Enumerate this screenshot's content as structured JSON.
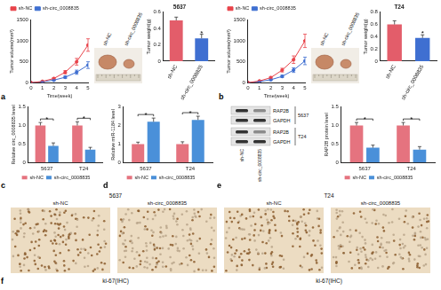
{
  "chart_data": [
    {
      "type": "line",
      "x": [
        0,
        1,
        2,
        3,
        4,
        5
      ],
      "xlim": [
        0,
        5
      ],
      "xticks": [
        0,
        1,
        2,
        3,
        4,
        5
      ],
      "x_label": "Time(week)",
      "y_label": "Tumor volume(mm³)",
      "ylim": [
        0,
        1500
      ],
      "yticks": [
        0,
        500,
        1000,
        1500
      ],
      "grid": false,
      "legend": "top-left",
      "series": [
        {
          "name": "sh-NC",
          "color": "#e8434a",
          "marker": "circle",
          "line_style": "solid",
          "values": [
            0,
            30,
            100,
            250,
            500,
            900
          ],
          "errors": [
            0,
            10,
            20,
            40,
            80,
            150
          ]
        },
        {
          "name": "sh-circ_0008835",
          "color": "#3f6fd1",
          "marker": "circle",
          "line_style": "solid",
          "values": [
            0,
            20,
            60,
            130,
            250,
            420
          ],
          "errors": [
            0,
            8,
            15,
            30,
            50,
            80
          ]
        }
      ]
    },
    {
      "type": "bar",
      "title": "5637",
      "categories": [
        "sh-NC",
        "sh-circ_0008835"
      ],
      "values": [
        0.5,
        0.28
      ],
      "errors": [
        0.04,
        0.05
      ],
      "colors": [
        "#e35d6a",
        "#3f6fd1"
      ],
      "y_label": "Tumor weight(g)",
      "ylim": [
        0,
        0.6
      ],
      "yticks": [
        0,
        0.2,
        0.4,
        0.6
      ],
      "grid": false,
      "annotations": [
        {
          "text": "*",
          "category": "sh-circ_0008835"
        }
      ]
    },
    {
      "type": "line",
      "x": [
        0,
        1,
        2,
        3,
        4,
        5
      ],
      "xlim": [
        0,
        5
      ],
      "xticks": [
        0,
        1,
        2,
        3,
        4,
        5
      ],
      "x_label": "Time(week)",
      "y_label": "Tumor volume(mm³)",
      "ylim": [
        0,
        1500
      ],
      "yticks": [
        0,
        500,
        1000,
        1500
      ],
      "grid": false,
      "legend": "top-left",
      "series": [
        {
          "name": "sh-NC",
          "color": "#e8434a",
          "marker": "circle",
          "line_style": "solid",
          "values": [
            0,
            40,
            120,
            300,
            550,
            1000
          ],
          "errors": [
            0,
            12,
            25,
            45,
            90,
            160
          ]
        },
        {
          "name": "sh-circ_0008835",
          "color": "#3f6fd1",
          "marker": "circle",
          "line_style": "solid",
          "values": [
            0,
            25,
            70,
            150,
            300,
            520
          ],
          "errors": [
            0,
            8,
            15,
            30,
            55,
            90
          ]
        }
      ]
    },
    {
      "type": "bar",
      "title": "T24",
      "categories": [
        "sh-NC",
        "sh-circ_0008835"
      ],
      "values": [
        0.6,
        0.38
      ],
      "errors": [
        0.06,
        0.05
      ],
      "colors": [
        "#e35d6a",
        "#3f6fd1"
      ],
      "y_label": "Tumor weight(g)",
      "ylim": [
        0,
        0.8
      ],
      "yticks": [
        0,
        0.2,
        0.4,
        0.6,
        0.8
      ],
      "grid": false,
      "annotations": [
        {
          "text": "*",
          "category": "sh-circ_0008835"
        }
      ]
    },
    {
      "type": "bar",
      "categories": [
        "5637",
        "T24"
      ],
      "y_label": "Relative circ_0008835 level",
      "ylim": [
        0,
        1.5
      ],
      "yticks": [
        0,
        0.5,
        {
          "value": 1,
          "label": "1.0"
        },
        1.5
      ],
      "grid": false,
      "legend": "bottom",
      "series": [
        {
          "name": "sh-NC",
          "color": "#e5737f",
          "values": [
            1,
            1
          ],
          "errors": [
            0.08,
            0.1
          ]
        },
        {
          "name": "sh-circ_0008835",
          "color": "#4a90d9",
          "values": [
            0.45,
            0.35
          ],
          "errors": [
            0.08,
            0.06
          ]
        }
      ],
      "annotations": [
        {
          "text": "*",
          "category": "5637"
        },
        {
          "text": "*",
          "category": "T24"
        }
      ]
    },
    {
      "type": "bar",
      "categories": [
        "5637",
        "T24"
      ],
      "y_label": "Relative miR-1184 level",
      "ylim": [
        0,
        3
      ],
      "yticks": [
        0,
        1,
        2,
        3
      ],
      "grid": false,
      "legend": "bottom",
      "series": [
        {
          "name": "sh-NC",
          "color": "#e5737f",
          "values": [
            1,
            1
          ],
          "errors": [
            0.1,
            0.12
          ]
        },
        {
          "name": "sh-circ_0008835",
          "color": "#4a90d9",
          "values": [
            2.2,
            2.3
          ],
          "errors": [
            0.2,
            0.2
          ]
        }
      ],
      "annotations": [
        {
          "text": "*",
          "category": "5637"
        },
        {
          "text": "*",
          "category": "T24"
        }
      ]
    },
    {
      "type": "bar",
      "categories": [
        "5637",
        "T24"
      ],
      "y_label": "RAP2B protein level",
      "ylim": [
        0,
        1.5
      ],
      "yticks": [
        0,
        0.5,
        {
          "value": 1,
          "label": "1.0"
        },
        1.5
      ],
      "grid": false,
      "legend": "bottom",
      "series": [
        {
          "name": "sh-NC",
          "color": "#e5737f",
          "values": [
            1,
            1
          ],
          "errors": [
            0.08,
            0.08
          ]
        },
        {
          "name": "sh-circ_0008835",
          "color": "#4a90d9",
          "values": [
            0.4,
            0.35
          ],
          "errors": [
            0.07,
            0.08
          ]
        }
      ],
      "annotations": [
        {
          "text": "*",
          "category": "5637"
        },
        {
          "text": "*",
          "category": "T24"
        }
      ]
    }
  ],
  "panel_letters": [
    "a",
    "b",
    "c",
    "d",
    "e",
    "f"
  ],
  "photos": [
    {
      "labels": [
        "sh-NC",
        "sh-circ_0008835"
      ]
    },
    {
      "labels": [
        "sh-NC",
        "sh-circ_0008835"
      ]
    }
  ],
  "blot": {
    "proteins": [
      "RAP2B",
      "GAPDH"
    ],
    "cell_lines": [
      "5637",
      "T24"
    ],
    "lanes": [
      "sh-NC",
      "sh-circ_0008835"
    ]
  },
  "ihc": [
    {
      "name": "5637",
      "conditions": [
        "sh-NC",
        "sh-circ_0008835"
      ],
      "caption": "ki-67(IHC)"
    },
    {
      "name": "T24",
      "conditions": [
        "sh-NC",
        "sh-circ_0008835"
      ],
      "caption": "ki-67(IHC)"
    }
  ]
}
